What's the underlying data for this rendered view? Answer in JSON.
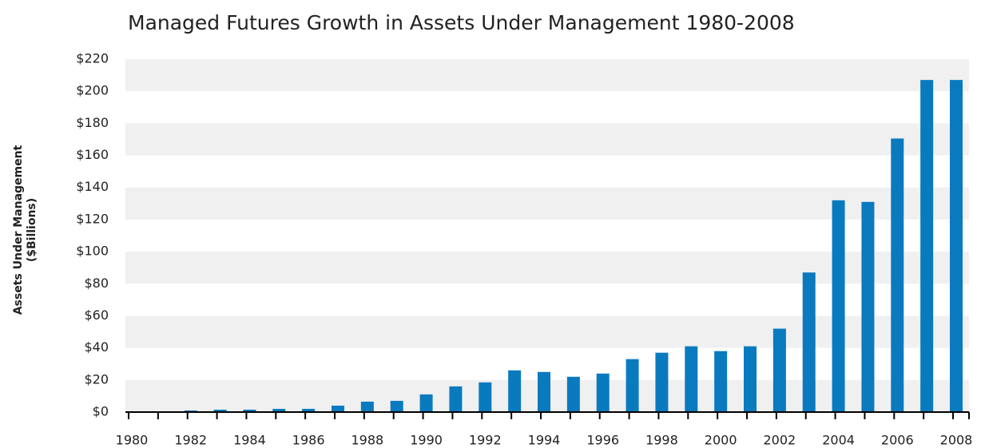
{
  "chart_data": {
    "type": "bar",
    "title": "Managed Futures Growth in Assets Under Management 1980-2008",
    "ylabel": [
      "Assets Under Management",
      "($Billions)"
    ],
    "categories": [
      "1980",
      null,
      "1982",
      null,
      "1984",
      null,
      "1986",
      null,
      "1988",
      null,
      "1990",
      null,
      "1992",
      null,
      "1994",
      null,
      "1996",
      null,
      "1998",
      null,
      "2000",
      null,
      "2002",
      null,
      "2004",
      null,
      "2006",
      null,
      "2008"
    ],
    "values": [
      0,
      0,
      1,
      1.5,
      1.5,
      2,
      2,
      4,
      6.5,
      7,
      11,
      16,
      18.5,
      26,
      25,
      22,
      24,
      33,
      37,
      41,
      38,
      41,
      52,
      87,
      132,
      131,
      170.5,
      207,
      207
    ],
    "color": "#0a7abf",
    "ylim": [
      0,
      220
    ],
    "yticks": [
      {
        "value": 0,
        "label": "$0"
      },
      {
        "value": 20,
        "label": "$20"
      },
      {
        "value": 40,
        "label": "$40"
      },
      {
        "value": 60,
        "label": "$60"
      },
      {
        "value": 80,
        "label": "$80"
      },
      {
        "value": 100,
        "label": "$100"
      },
      {
        "value": 120,
        "label": "$120"
      },
      {
        "value": 140,
        "label": "$140"
      },
      {
        "value": 160,
        "label": "$160"
      },
      {
        "value": 180,
        "label": "$180"
      },
      {
        "value": 200,
        "label": "$200"
      },
      {
        "value": 220,
        "label": "$220"
      }
    ],
    "bands": true,
    "band_color": "#f0f0f0"
  }
}
